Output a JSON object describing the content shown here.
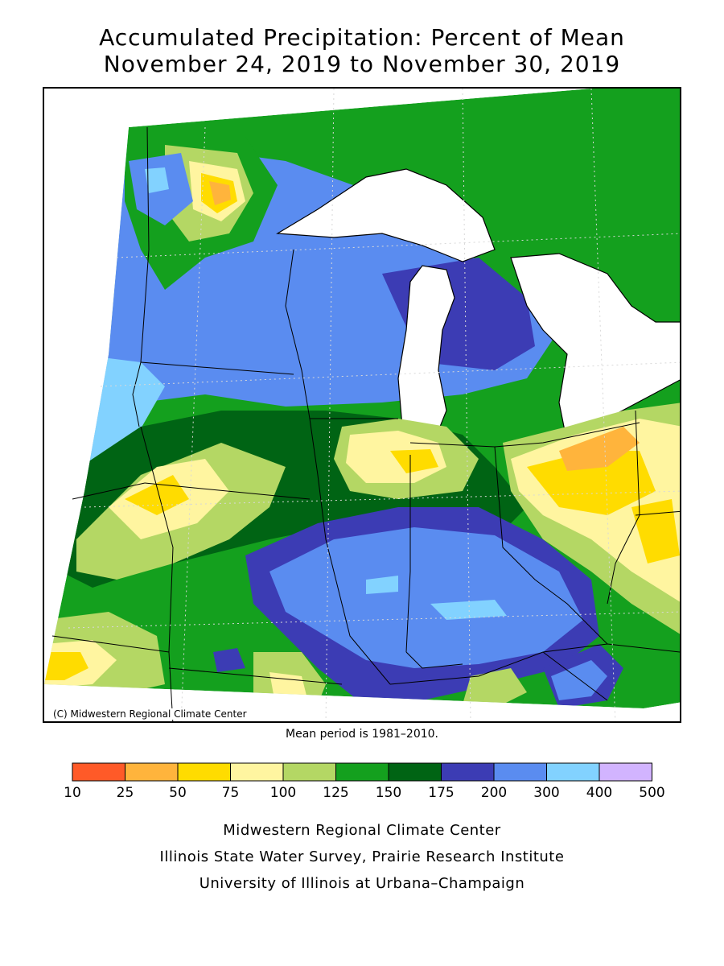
{
  "title": {
    "line1": "Accumulated Precipitation: Percent of Mean",
    "line2": "November 24, 2019 to November 30, 2019"
  },
  "map": {
    "copyright": "(C) Midwestern Regional Climate Center",
    "mean_note": "Mean period is 1981–2010."
  },
  "legend": {
    "bins": [
      {
        "from": "10",
        "to": "25",
        "color": "#ff5a28"
      },
      {
        "from": "25",
        "to": "50",
        "color": "#ffb43c"
      },
      {
        "from": "50",
        "to": "75",
        "color": "#ffdc00"
      },
      {
        "from": "75",
        "to": "100",
        "color": "#fff5a0"
      },
      {
        "from": "100",
        "to": "125",
        "color": "#b4d764"
      },
      {
        "from": "125",
        "to": "150",
        "color": "#14a01e"
      },
      {
        "from": "150",
        "to": "175",
        "color": "#006414"
      },
      {
        "from": "175",
        "to": "200",
        "color": "#3c3cb4"
      },
      {
        "from": "200",
        "to": "300",
        "color": "#5a8cf0"
      },
      {
        "from": "300",
        "to": "400",
        "color": "#82d2ff"
      },
      {
        "from": "400",
        "to": "500",
        "color": "#d2b4ff"
      }
    ],
    "ticks": [
      "10",
      "25",
      "50",
      "75",
      "100",
      "125",
      "150",
      "175",
      "200",
      "300",
      "400",
      "500"
    ]
  },
  "credits": {
    "line1": "Midwestern Regional Climate Center",
    "line2": "Illinois State Water Survey, Prairie Research Institute",
    "line3": "University of Illinois at Urbana–Champaign"
  }
}
